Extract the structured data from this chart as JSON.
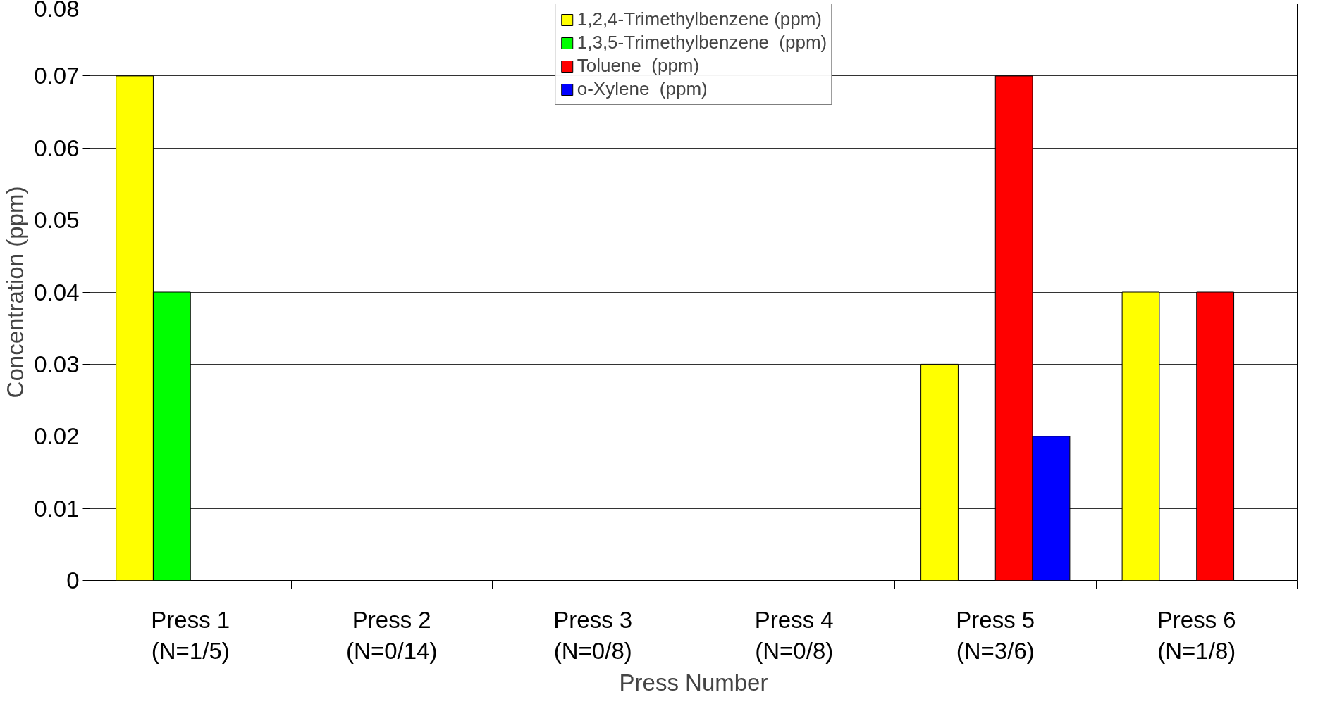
{
  "chart_data": {
    "type": "bar",
    "xlabel": "Press Number",
    "ylabel": "Concentration (ppm)",
    "categories": [
      "Press 1\n(N=1/5)",
      "Press 2\n(N=0/14)",
      "Press 3\n(N=0/8)",
      "Press 4\n(N=0/8)",
      "Press 5\n(N=3/6)",
      "Press 6\n(N=1/8)"
    ],
    "series": [
      {
        "name": "1,2,4-Trimethylbenzene (ppm)",
        "color": "#ffff00",
        "values": [
          0.07,
          null,
          null,
          null,
          0.03,
          0.04
        ]
      },
      {
        "name": "1,3,5-Trimethylbenzene  (ppm)",
        "color": "#00ff00",
        "values": [
          0.04,
          null,
          null,
          null,
          null,
          null
        ]
      },
      {
        "name": "Toluene  (ppm)",
        "color": "#ff0000",
        "values": [
          null,
          null,
          null,
          null,
          0.07,
          0.04
        ]
      },
      {
        "name": "o-Xylene  (ppm)",
        "color": "#0000ff",
        "values": [
          null,
          null,
          null,
          null,
          0.02,
          null
        ]
      }
    ],
    "ylim": [
      0,
      0.08
    ],
    "yticks": [
      0,
      0.01,
      0.02,
      0.03,
      0.04,
      0.05,
      0.06,
      0.07,
      0.08
    ],
    "grid": "y",
    "legend": "top"
  }
}
